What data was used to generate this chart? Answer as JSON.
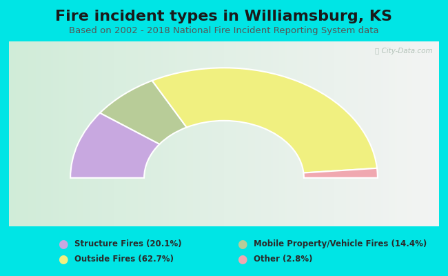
{
  "title": "Fire incident types in Williamsburg, KS",
  "subtitle": "Based on 2002 - 2018 National Fire Incident Reporting System data",
  "watermark": "ⓘ City-Data.com",
  "segments": [
    {
      "label": "Structure Fires (20.1%)",
      "value": 20.1,
      "color": "#c8a8e0"
    },
    {
      "label": "Mobile Property/Vehicle Fires (14.4%)",
      "value": 14.4,
      "color": "#b8cc98"
    },
    {
      "label": "Outside Fires (62.7%)",
      "value": 62.7,
      "color": "#f0f080"
    },
    {
      "label": "Other (2.8%)",
      "value": 2.8,
      "color": "#f0a8b0"
    }
  ],
  "bg_color": "#00e5e5",
  "title_fontsize": 16,
  "subtitle_fontsize": 9.5,
  "title_color": "#1a1a1a",
  "subtitle_color": "#555555",
  "watermark_color": "#aabbb0",
  "outer_r": 1.25,
  "inner_r": 0.65
}
